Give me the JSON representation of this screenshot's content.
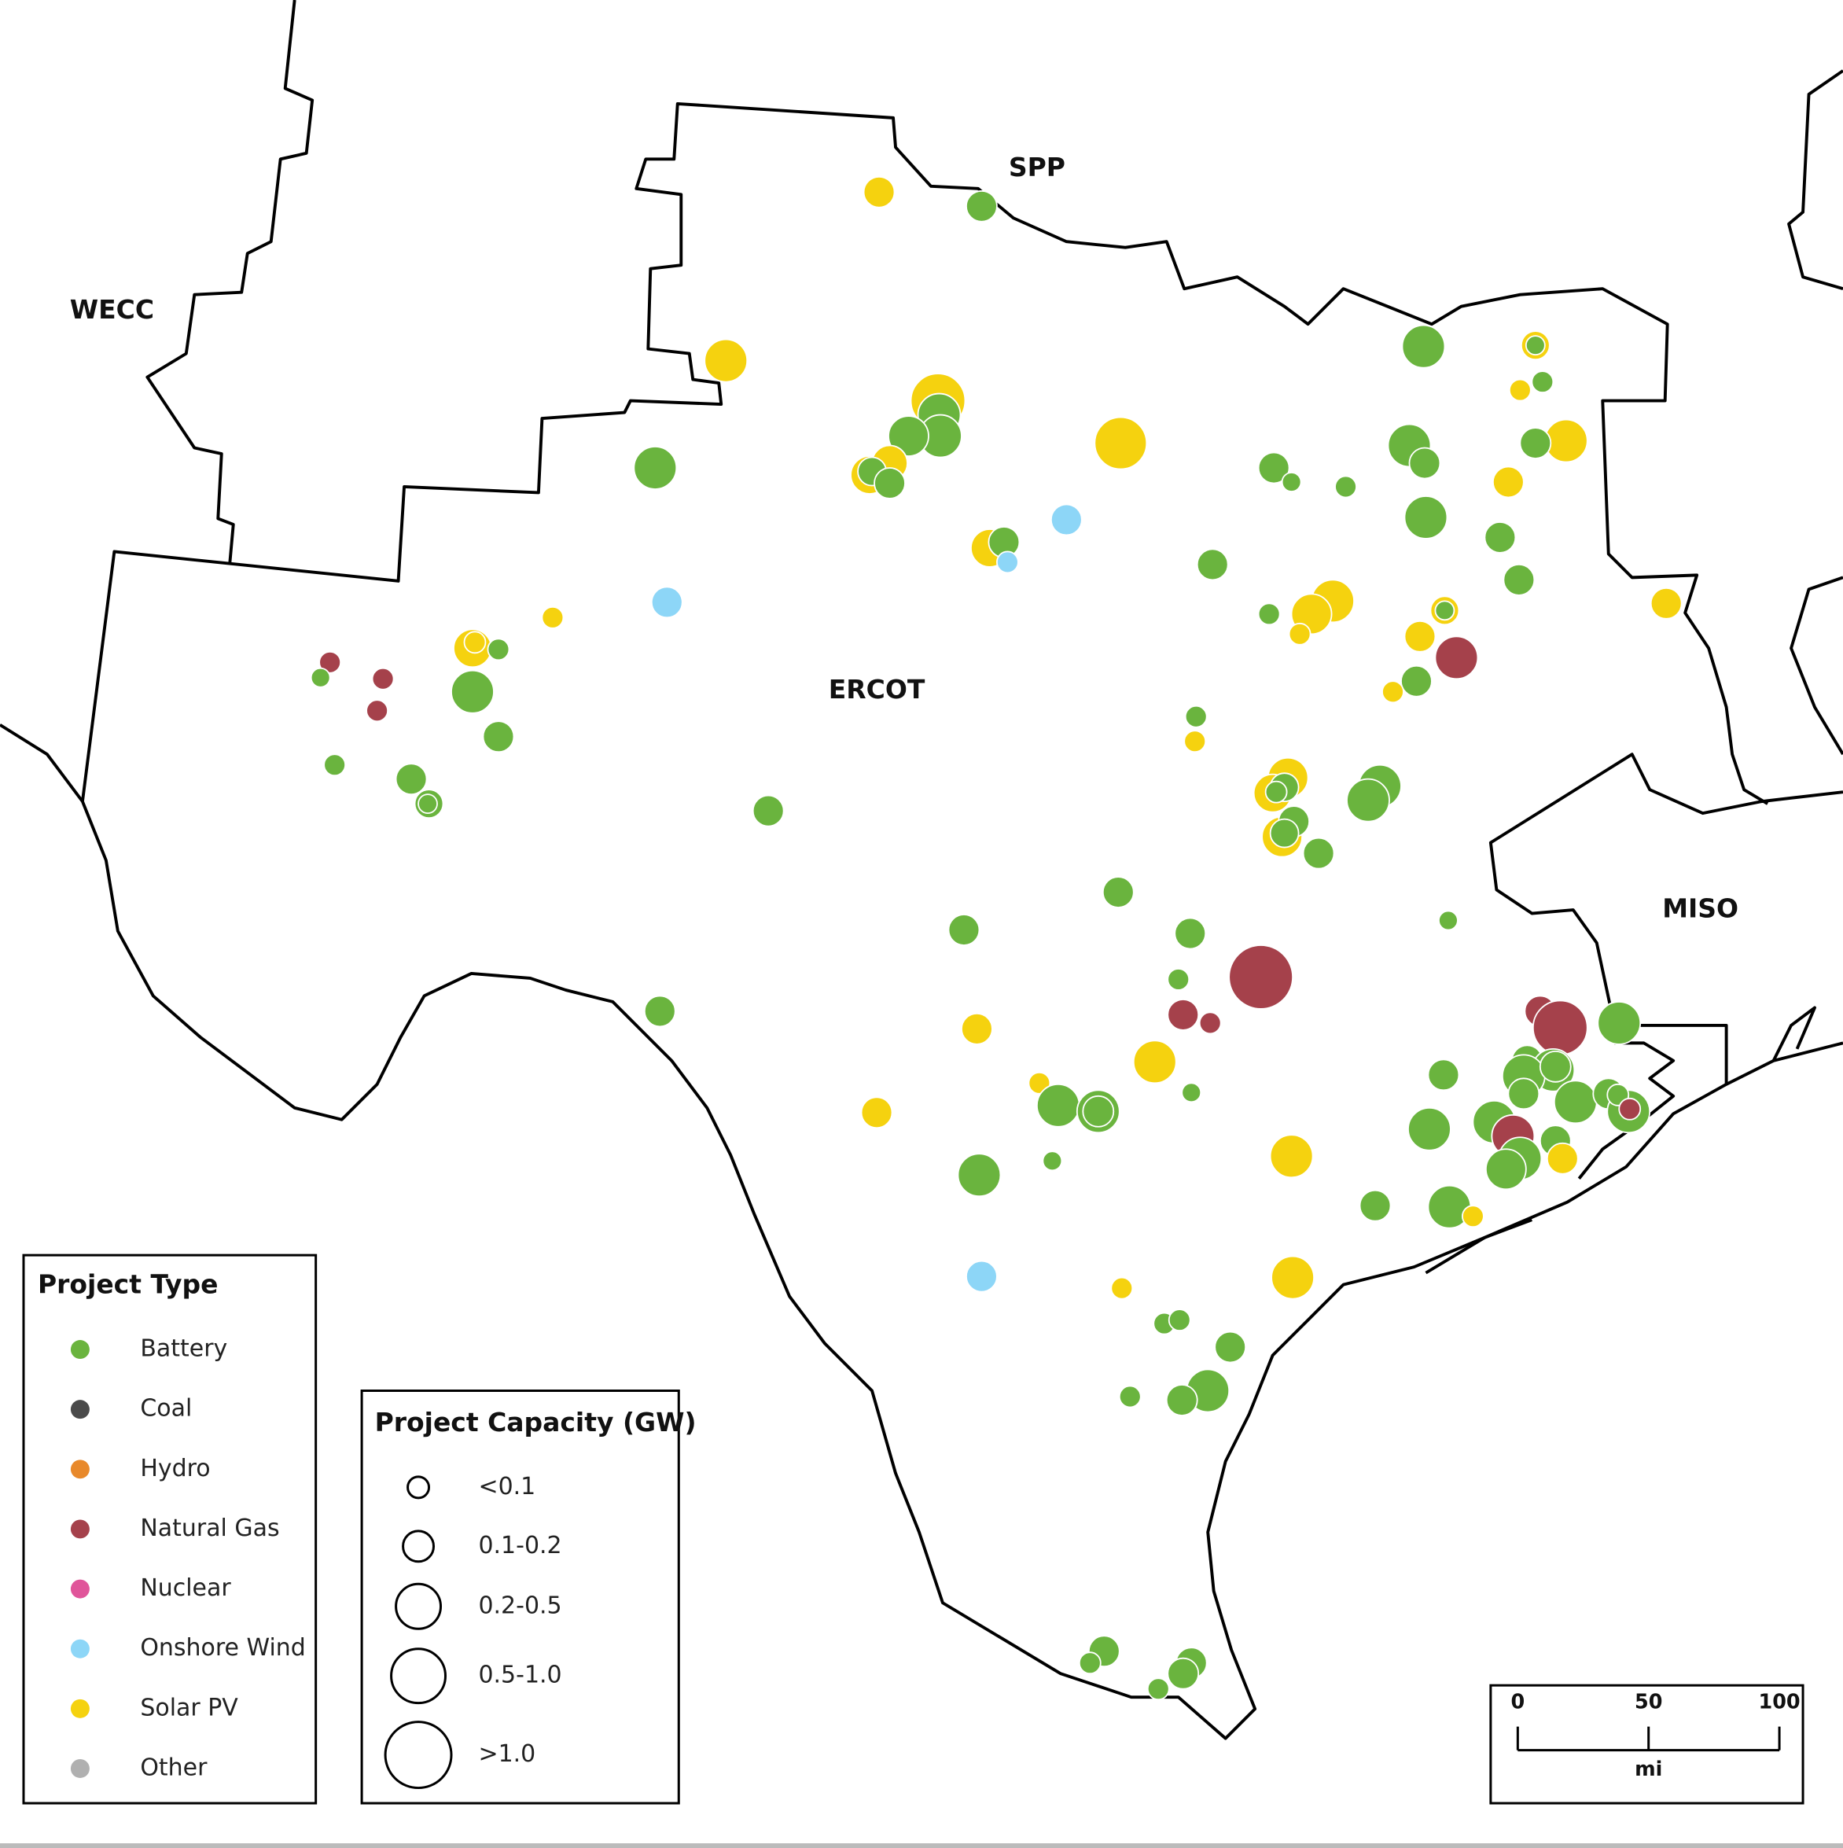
{
  "regions": {
    "wecc": "WECC",
    "spp": "SPP",
    "ercot": "ERCOT",
    "miso": "MISO"
  },
  "legend": {
    "project_type": {
      "title": "Project Type",
      "items": [
        {
          "label": "Battery",
          "color": "#6ab43e"
        },
        {
          "label": "Coal",
          "color": "#4a4a4a"
        },
        {
          "label": "Hydro",
          "color": "#e8892b"
        },
        {
          "label": "Natural Gas",
          "color": "#a5414b"
        },
        {
          "label": "Nuclear",
          "color": "#e0559a"
        },
        {
          "label": "Onshore Wind",
          "color": "#8dd6f7"
        },
        {
          "label": "Solar PV",
          "color": "#f5d20f"
        },
        {
          "label": "Other",
          "color": "#b0b0b0"
        }
      ]
    },
    "capacity": {
      "title": "Project Capacity (GW)",
      "items": [
        "<0.1",
        "0.1-0.2",
        "0.2-0.5",
        "0.5-1.0",
        ">1.0"
      ]
    }
  },
  "scale_bar": {
    "ticks": [
      0,
      50,
      100
    ],
    "unit": "mi"
  }
}
